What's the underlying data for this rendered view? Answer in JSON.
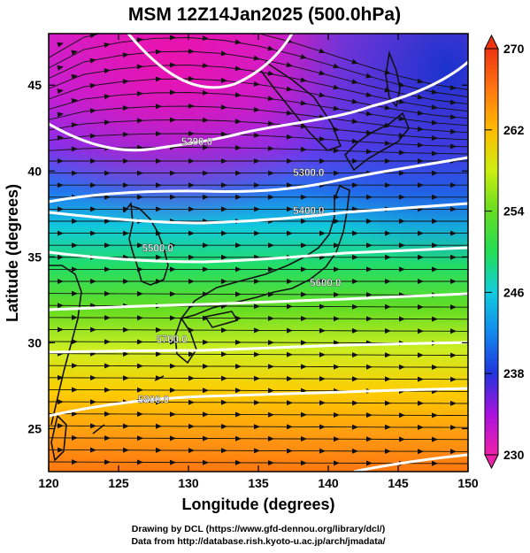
{
  "title": "MSM 12Z14Jan2025 (500.0hPa)",
  "xlabel": "Longitude (degrees)",
  "ylabel": "Latitude  (degrees)",
  "credits": [
    "Drawing by DCL (https://www.gfd-dennou.org/library/dcl/)",
    "Data from http://database.rish.kyoto-u.ac.jp/arch/jmadata/"
  ],
  "chart_data": {
    "type": "heatmap",
    "description_fields": "shaded temperature (K) with geopotential height contours (m) and wind streamlines",
    "xlim": [
      120,
      150
    ],
    "ylim": [
      22.5,
      48
    ],
    "x_ticks": [
      120,
      125,
      130,
      135,
      140,
      145,
      150
    ],
    "y_ticks": [
      25,
      30,
      35,
      40,
      45
    ],
    "colorbar": {
      "min": 230,
      "max": 270,
      "ticks": [
        230,
        238,
        246,
        254,
        262,
        270
      ],
      "colors": [
        "#ee22aa",
        "#aa11dd",
        "#2233dd",
        "#11aaee",
        "#22dd55",
        "#aaee11",
        "#ffcc00",
        "#ff7711",
        "#ee3311"
      ]
    },
    "height_contours": [
      {
        "label": "5200.0",
        "lon": 130.6,
        "lat": 41.5
      },
      {
        "label": "5300.0",
        "lon": 138.6,
        "lat": 39.7
      },
      {
        "label": "5400.0",
        "lon": 138.6,
        "lat": 37.5
      },
      {
        "label": "5500.0",
        "lon": 127.8,
        "lat": 35.3
      },
      {
        "label": "5600.0",
        "lon": 139.8,
        "lat": 33.3
      },
      {
        "label": "5700.0",
        "lon": 128.8,
        "lat": 30.0
      },
      {
        "label": "5800.0",
        "lon": 127.5,
        "lat": 26.5
      }
    ]
  }
}
